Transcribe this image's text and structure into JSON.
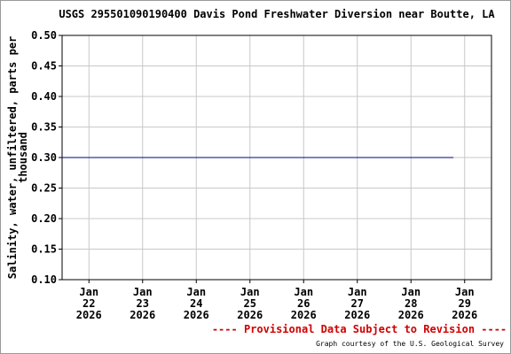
{
  "chart_data": {
    "type": "line",
    "title": "USGS 295501090190400 Davis Pond Freshwater Diversion near Boutte, LA",
    "y_label": [
      "Salinity, water, unfiltered, parts per",
      "thousand"
    ],
    "series": [
      {
        "name": "Salinity",
        "color": "#000080",
        "x": [
          "2026-01-21T12:00",
          "2026-01-28T19:00"
        ],
        "values": [
          0.3,
          0.3
        ]
      }
    ],
    "xlim": [
      "2026-01-21T12:00",
      "2026-01-29T12:00"
    ],
    "xticks": [
      {
        "value": "2026-01-22",
        "label": [
          "Jan",
          "22",
          "2026"
        ]
      },
      {
        "value": "2026-01-23",
        "label": [
          "Jan",
          "23",
          "2026"
        ]
      },
      {
        "value": "2026-01-24",
        "label": [
          "Jan",
          "24",
          "2026"
        ]
      },
      {
        "value": "2026-01-25",
        "label": [
          "Jan",
          "25",
          "2026"
        ]
      },
      {
        "value": "2026-01-26",
        "label": [
          "Jan",
          "26",
          "2026"
        ]
      },
      {
        "value": "2026-01-27",
        "label": [
          "Jan",
          "27",
          "2026"
        ]
      },
      {
        "value": "2026-01-28",
        "label": [
          "Jan",
          "28",
          "2026"
        ]
      },
      {
        "value": "2026-01-29",
        "label": [
          "Jan",
          "29",
          "2026"
        ]
      }
    ],
    "ylim": [
      0.1,
      0.5
    ],
    "yticks": [
      {
        "value": 0.1,
        "label": "0.10"
      },
      {
        "value": 0.15,
        "label": "0.15"
      },
      {
        "value": 0.2,
        "label": "0.20"
      },
      {
        "value": 0.25,
        "label": "0.25"
      },
      {
        "value": 0.3,
        "label": "0.30"
      },
      {
        "value": 0.35,
        "label": "0.35"
      },
      {
        "value": 0.4,
        "label": "0.40"
      },
      {
        "value": 0.45,
        "label": "0.45"
      },
      {
        "value": 0.5,
        "label": "0.50"
      }
    ],
    "grid": true,
    "footer_note": "---- Provisional Data Subject to Revision ----",
    "credit": "Graph courtesy of the U.S. Geological Survey"
  }
}
